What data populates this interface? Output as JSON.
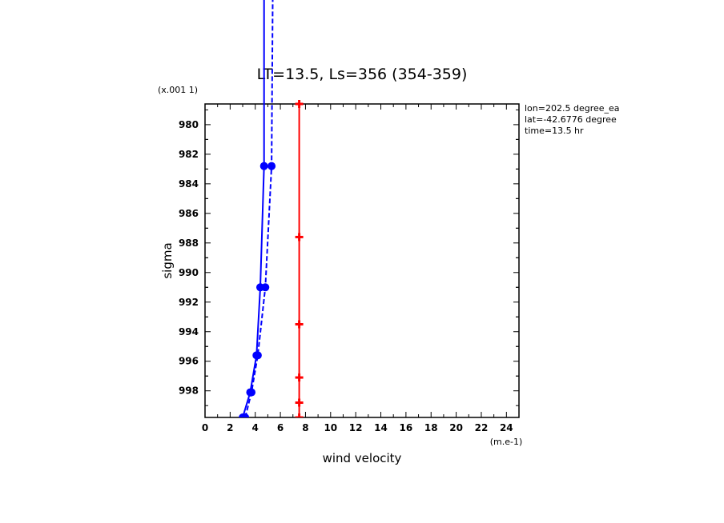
{
  "chart_data": {
    "type": "line",
    "title": "LT=13.5, Ls=356 (354-359)",
    "xlabel": "wind velocity",
    "ylabel": "sigma",
    "x_unit": "(m.e-1)",
    "y_unit": "(x.001 1)",
    "xlim": [
      0,
      25
    ],
    "ylim": [
      999.8,
      978.6
    ],
    "y_inverted": true,
    "x_ticks": [
      0,
      2,
      4,
      6,
      8,
      10,
      12,
      14,
      16,
      18,
      20,
      22,
      24
    ],
    "y_ticks": [
      980,
      982,
      984,
      986,
      988,
      990,
      992,
      994,
      996,
      998
    ],
    "annotations": [
      "lon=202.5 degree_ea",
      "lat=-42.6776 degree",
      "time=13.5 hr"
    ],
    "series": [
      {
        "color": "#0000ff",
        "style": "solid",
        "points": [
          [
            3.0,
            999.8
          ],
          [
            3.6,
            998.1
          ],
          [
            4.1,
            995.6
          ],
          [
            4.4,
            991.0
          ],
          [
            4.7,
            982.8
          ],
          [
            4.7,
            970.0
          ]
        ]
      },
      {
        "color": "#0000ff",
        "style": "dashed",
        "points": [
          [
            3.2,
            999.8
          ],
          [
            3.7,
            998.1
          ],
          [
            4.2,
            995.6
          ],
          [
            4.8,
            991.0
          ],
          [
            5.3,
            982.8
          ],
          [
            5.4,
            970.0
          ]
        ]
      },
      {
        "color": "#ff0000",
        "style": "solid",
        "points": [
          [
            7.5,
            978.6
          ],
          [
            7.5,
            987.6
          ],
          [
            7.5,
            993.5
          ],
          [
            7.5,
            997.1
          ],
          [
            7.5,
            998.8
          ],
          [
            7.5,
            999.8
          ]
        ]
      }
    ]
  }
}
